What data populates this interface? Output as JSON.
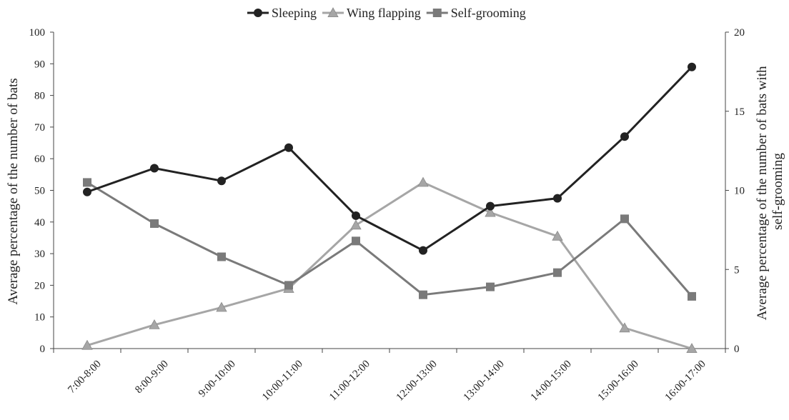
{
  "chart_data": {
    "type": "line",
    "categories": [
      "7:00-8:00",
      "8:00-9:00",
      "9:00-10:00",
      "10:00-11:00",
      "11:00-12:00",
      "12:00-13:00",
      "13:00-14:00",
      "14:00-15:00",
      "15:00-16:00",
      "16:00-17:00"
    ],
    "series": [
      {
        "name": "Sleeping",
        "axis": "left",
        "marker": "circle",
        "color": "#222222",
        "values": [
          49.5,
          57,
          53,
          63.5,
          42,
          31,
          45,
          47.5,
          67,
          89
        ]
      },
      {
        "name": "Wing flapping",
        "axis": "left",
        "marker": "triangle",
        "color": "#a6a6a6",
        "values": [
          1,
          7.5,
          13,
          19,
          39,
          52.5,
          43,
          35.5,
          6.5,
          0
        ]
      },
      {
        "name": "Self-grooming",
        "axis": "right",
        "marker": "square",
        "color": "#7a7a7a",
        "values": [
          10.5,
          7.9,
          5.8,
          4.0,
          6.8,
          3.4,
          3.9,
          4.8,
          8.2,
          3.3
        ]
      }
    ],
    "ylabel": "Average percentage of the number of bats",
    "y2label_lines": [
      "Average percentage of the number of bats with",
      "self-grooming"
    ],
    "ylim": [
      0,
      100
    ],
    "y2lim": [
      0,
      20
    ],
    "yticks": [
      "0",
      "10",
      "20",
      "30",
      "40",
      "50",
      "60",
      "70",
      "80",
      "90",
      "100"
    ],
    "y2ticks": [
      "0",
      "5",
      "10",
      "15",
      "20"
    ],
    "legend_position": "top-center",
    "grid": false
  }
}
